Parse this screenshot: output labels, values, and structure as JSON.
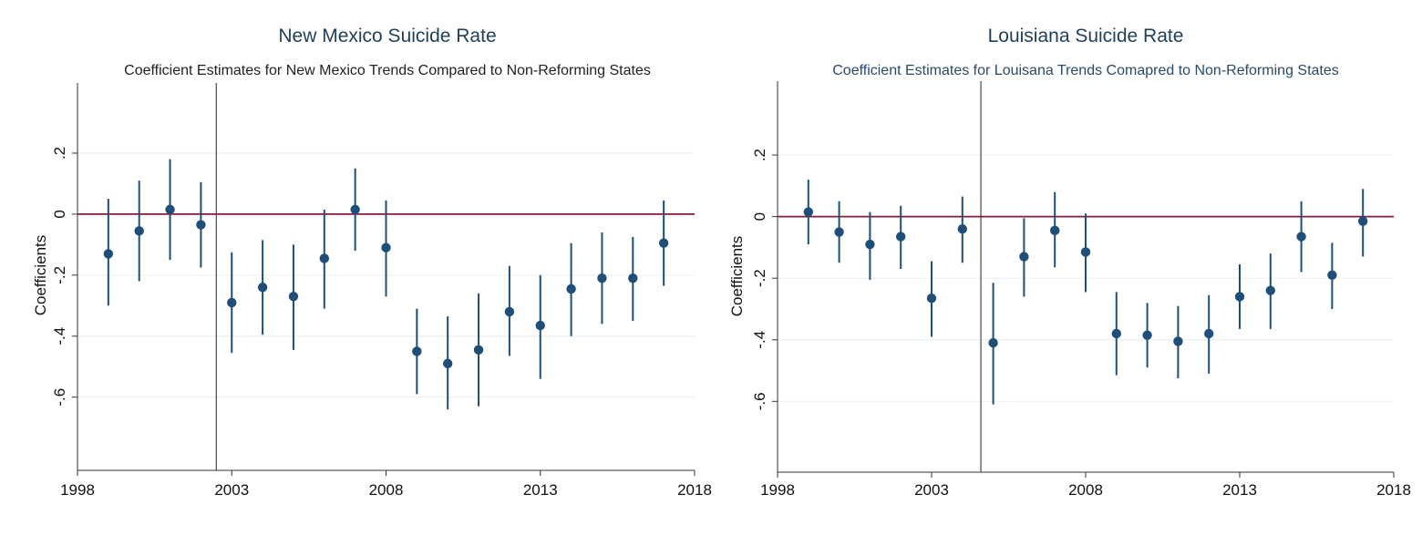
{
  "chart_data": [
    {
      "type": "scatter",
      "title": "New Mexico Suicide Rate",
      "subtitle": "Coefficient Estimates for New Mexico Trends Compared to Non-Reforming States",
      "xlabel": "",
      "ylabel": "Coefficients",
      "xlim": [
        1998,
        2018
      ],
      "ylim": [
        -0.84,
        0.43
      ],
      "x_ticks": [
        "1998",
        "2003",
        "2008",
        "2013",
        "2018"
      ],
      "y_ticks": [
        ".2",
        "0",
        "-.2",
        "-.4",
        "-.6"
      ],
      "y_tick_values": [
        0.2,
        0,
        -0.2,
        -0.4,
        -0.6
      ],
      "reference_line_y": 0,
      "vertical_line_x": 2002.5,
      "grid": true,
      "points": [
        {
          "x": 1999,
          "y": -0.13,
          "lo": -0.3,
          "hi": 0.05
        },
        {
          "x": 2000,
          "y": -0.055,
          "lo": -0.22,
          "hi": 0.11
        },
        {
          "x": 2001,
          "y": 0.015,
          "lo": -0.15,
          "hi": 0.18
        },
        {
          "x": 2002,
          "y": -0.035,
          "lo": -0.175,
          "hi": 0.105
        },
        {
          "x": 2003,
          "y": -0.29,
          "lo": -0.455,
          "hi": -0.125
        },
        {
          "x": 2004,
          "y": -0.24,
          "lo": -0.395,
          "hi": -0.085
        },
        {
          "x": 2005,
          "y": -0.27,
          "lo": -0.445,
          "hi": -0.1
        },
        {
          "x": 2006,
          "y": -0.145,
          "lo": -0.31,
          "hi": 0.015
        },
        {
          "x": 2007,
          "y": 0.015,
          "lo": -0.12,
          "hi": 0.15
        },
        {
          "x": 2008,
          "y": -0.11,
          "lo": -0.27,
          "hi": 0.045
        },
        {
          "x": 2009,
          "y": -0.45,
          "lo": -0.59,
          "hi": -0.31
        },
        {
          "x": 2010,
          "y": -0.49,
          "lo": -0.64,
          "hi": -0.335
        },
        {
          "x": 2011,
          "y": -0.445,
          "lo": -0.63,
          "hi": -0.26
        },
        {
          "x": 2012,
          "y": -0.32,
          "lo": -0.465,
          "hi": -0.17
        },
        {
          "x": 2013,
          "y": -0.365,
          "lo": -0.54,
          "hi": -0.2
        },
        {
          "x": 2014,
          "y": -0.245,
          "lo": -0.4,
          "hi": -0.095
        },
        {
          "x": 2015,
          "y": -0.21,
          "lo": -0.36,
          "hi": -0.06
        },
        {
          "x": 2016,
          "y": -0.21,
          "lo": -0.35,
          "hi": -0.075
        },
        {
          "x": 2017,
          "y": -0.095,
          "lo": -0.235,
          "hi": 0.045
        }
      ]
    },
    {
      "type": "scatter",
      "title": "Louisiana Suicide Rate",
      "subtitle": "Coefficient Estimates for Louisana Trends Comapred to Non-Reforming States",
      "xlabel": "",
      "ylabel": "Coefficients",
      "xlim": [
        1998,
        2018
      ],
      "ylim": [
        -0.83,
        0.44
      ],
      "x_ticks": [
        "1998",
        "2003",
        "2008",
        "2013",
        "2018"
      ],
      "y_ticks": [
        ".2",
        "0",
        "-.2",
        "-.4",
        "-.6"
      ],
      "y_tick_values": [
        0.2,
        0,
        -0.2,
        -0.4,
        -0.6
      ],
      "reference_line_y": 0,
      "vertical_line_x": 2004.6,
      "grid": true,
      "points": [
        {
          "x": 1999,
          "y": 0.015,
          "lo": -0.09,
          "hi": 0.12
        },
        {
          "x": 2000,
          "y": -0.05,
          "lo": -0.15,
          "hi": 0.05
        },
        {
          "x": 2001,
          "y": -0.09,
          "lo": -0.205,
          "hi": 0.015
        },
        {
          "x": 2002,
          "y": -0.065,
          "lo": -0.17,
          "hi": 0.035
        },
        {
          "x": 2003,
          "y": -0.265,
          "lo": -0.39,
          "hi": -0.145
        },
        {
          "x": 2004,
          "y": -0.04,
          "lo": -0.15,
          "hi": 0.065
        },
        {
          "x": 2005,
          "y": -0.41,
          "lo": -0.61,
          "hi": -0.215
        },
        {
          "x": 2006,
          "y": -0.13,
          "lo": -0.26,
          "hi": -0.005
        },
        {
          "x": 2007,
          "y": -0.045,
          "lo": -0.165,
          "hi": 0.08
        },
        {
          "x": 2008,
          "y": -0.115,
          "lo": -0.245,
          "hi": 0.01
        },
        {
          "x": 2009,
          "y": -0.38,
          "lo": -0.515,
          "hi": -0.245
        },
        {
          "x": 2010,
          "y": -0.385,
          "lo": -0.49,
          "hi": -0.28
        },
        {
          "x": 2011,
          "y": -0.405,
          "lo": -0.525,
          "hi": -0.29
        },
        {
          "x": 2012,
          "y": -0.38,
          "lo": -0.51,
          "hi": -0.255
        },
        {
          "x": 2013,
          "y": -0.26,
          "lo": -0.365,
          "hi": -0.155
        },
        {
          "x": 2014,
          "y": -0.24,
          "lo": -0.365,
          "hi": -0.12
        },
        {
          "x": 2015,
          "y": -0.065,
          "lo": -0.18,
          "hi": 0.05
        },
        {
          "x": 2016,
          "y": -0.19,
          "lo": -0.3,
          "hi": -0.085
        },
        {
          "x": 2017,
          "y": -0.015,
          "lo": -0.13,
          "hi": 0.09
        }
      ]
    }
  ],
  "colors": {
    "marker": "#1f4e79",
    "zero_line": "#8b1a3a",
    "vertical_line": "#555555",
    "grid": "#eaf0f4",
    "panel_bg": "#ffffff",
    "outer_bg": "#ffffff",
    "title": "#1f3f5a",
    "subtitle_left": "#222222",
    "subtitle_right": "#2a4a6a"
  }
}
